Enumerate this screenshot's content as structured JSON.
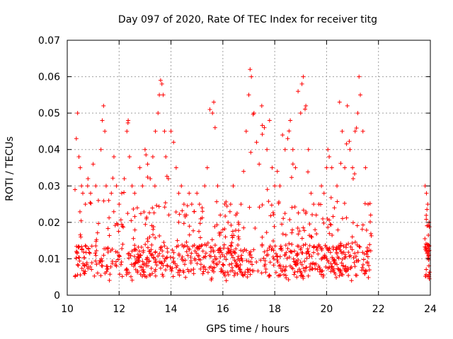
{
  "chart_data": {
    "type": "scatter",
    "title": "Day 097 of 2020, Rate Of TEC Index for receiver titg",
    "xlabel": "GPS time / hours",
    "ylabel": "ROTI / TECUs",
    "xlim": [
      10,
      24
    ],
    "ylim": [
      0,
      0.07
    ],
    "grid": true,
    "marker": "+",
    "marker_color": "#ff0000",
    "x_ticks": [
      10,
      12,
      14,
      16,
      18,
      20,
      22,
      24
    ],
    "x_tick_labels": [
      "10",
      "12",
      "14",
      "16",
      "18",
      "20",
      "22",
      "24"
    ],
    "y_ticks": [
      0,
      0.01,
      0.02,
      0.03,
      0.04,
      0.05,
      0.06,
      0.07
    ],
    "y_tick_labels": [
      "0",
      "0.01",
      "0.02",
      "0.03",
      "0.04",
      "0.05",
      "0.06",
      "0.07"
    ],
    "series": [
      {
        "name": "ROTI",
        "x": [
          10.3,
          10.35,
          10.4,
          10.45,
          10.5,
          10.55,
          10.6,
          10.7,
          10.8,
          10.9,
          11.0,
          11.1,
          11.2,
          11.3,
          11.35,
          11.4,
          11.45,
          11.5,
          11.6,
          11.7,
          11.8,
          11.9,
          12.0,
          12.1,
          12.2,
          12.3,
          12.35,
          12.4,
          12.5,
          12.6,
          12.7,
          12.8,
          12.9,
          13.0,
          13.1,
          13.2,
          13.3,
          13.4,
          13.5,
          13.55,
          13.6,
          13.65,
          13.7,
          13.75,
          13.8,
          13.9,
          14.0,
          14.1,
          14.2,
          14.3,
          14.4,
          14.5,
          14.6,
          14.7,
          14.8,
          14.9,
          15.0,
          15.1,
          15.2,
          15.3,
          15.4,
          15.5,
          15.6,
          15.65,
          15.7,
          15.8,
          15.9,
          16.0,
          16.1,
          16.2,
          16.3,
          16.4,
          16.5,
          16.6,
          16.7,
          16.8,
          16.9,
          17.0,
          17.05,
          17.1,
          17.2,
          17.3,
          17.4,
          17.5,
          17.6,
          17.7,
          17.8,
          17.9,
          18.0,
          18.1,
          18.2,
          18.3,
          18.4,
          18.5,
          18.6,
          18.7,
          18.8,
          18.9,
          19.0,
          19.05,
          19.1,
          19.2,
          19.3,
          19.4,
          19.5,
          19.6,
          19.7,
          19.8,
          19.9,
          20.0,
          20.05,
          20.1,
          20.2,
          20.3,
          20.4,
          20.5,
          20.6,
          20.7,
          20.8,
          20.9,
          21.0,
          21.1,
          21.2,
          21.25,
          21.3,
          21.4,
          21.5,
          21.6,
          21.7,
          23.8,
          23.85,
          23.9,
          23.95
        ],
        "y": [
          0.029,
          0.043,
          0.05,
          0.038,
          0.035,
          0.03,
          0.028,
          0.025,
          0.032,
          0.028,
          0.036,
          0.03,
          0.026,
          0.04,
          0.048,
          0.052,
          0.045,
          0.03,
          0.026,
          0.028,
          0.038,
          0.03,
          0.025,
          0.028,
          0.032,
          0.045,
          0.048,
          0.038,
          0.03,
          0.028,
          0.024,
          0.035,
          0.03,
          0.04,
          0.036,
          0.032,
          0.038,
          0.045,
          0.05,
          0.055,
          0.059,
          0.058,
          0.055,
          0.045,
          0.038,
          0.032,
          0.045,
          0.042,
          0.035,
          0.028,
          0.03,
          0.025,
          0.022,
          0.028,
          0.025,
          0.023,
          0.028,
          0.025,
          0.024,
          0.03,
          0.035,
          0.051,
          0.05,
          0.053,
          0.046,
          0.03,
          0.022,
          0.018,
          0.016,
          0.02,
          0.025,
          0.03,
          0.022,
          0.02,
          0.025,
          0.034,
          0.045,
          0.055,
          0.062,
          0.06,
          0.05,
          0.042,
          0.036,
          0.052,
          0.046,
          0.04,
          0.048,
          0.035,
          0.03,
          0.034,
          0.03,
          0.044,
          0.04,
          0.043,
          0.048,
          0.04,
          0.035,
          0.056,
          0.05,
          0.058,
          0.06,
          0.052,
          0.04,
          0.028,
          0.025,
          0.022,
          0.025,
          0.03,
          0.028,
          0.035,
          0.04,
          0.038,
          0.035,
          0.024,
          0.03,
          0.053,
          0.045,
          0.035,
          0.052,
          0.04,
          0.035,
          0.045,
          0.05,
          0.06,
          0.055,
          0.045,
          0.035,
          0.025,
          0.022,
          0.03,
          0.028,
          0.025,
          0.02
        ],
        "baseline": [
          0.005,
          0.014
        ]
      }
    ]
  }
}
